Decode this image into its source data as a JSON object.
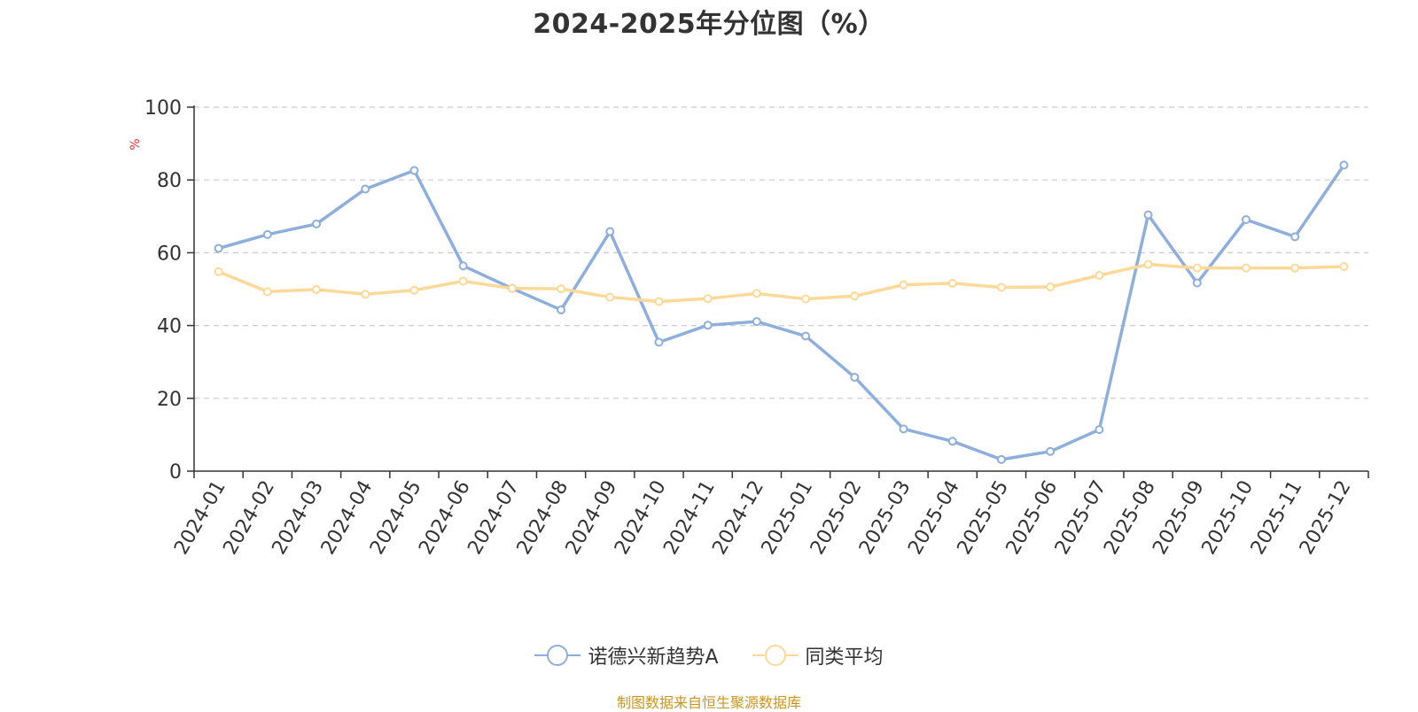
{
  "chart_data": {
    "type": "line",
    "title": "2024-2025年分位图（%）",
    "ylabel": "%",
    "ylim": [
      0,
      100
    ],
    "yticks": [
      0,
      20,
      40,
      60,
      80,
      100
    ],
    "grid": true,
    "legend_position": "bottom-center",
    "categories": [
      "2024-01",
      "2024-02",
      "2024-03",
      "2024-04",
      "2024-05",
      "2024-06",
      "2024-07",
      "2024-08",
      "2024-09",
      "2024-10",
      "2024-11",
      "2024-12",
      "2025-01",
      "2025-02",
      "2025-03",
      "2025-04",
      "2025-05",
      "2025-06",
      "2025-07",
      "2025-08",
      "2025-09",
      "2025-10",
      "2025-11",
      "2025-12"
    ],
    "series": [
      {
        "name": "诺德兴新趋势A",
        "color": "#8eaedb",
        "values": [
          61.2,
          65.0,
          67.9,
          77.5,
          82.6,
          56.4,
          50.2,
          44.3,
          65.8,
          35.4,
          40.1,
          41.1,
          37.1,
          25.8,
          11.6,
          8.2,
          3.2,
          5.4,
          11.4,
          70.4,
          51.7,
          69.1,
          64.4,
          84.1
        ]
      },
      {
        "name": "同类平均",
        "color": "#fdd998",
        "values": [
          54.8,
          49.3,
          49.9,
          48.6,
          49.7,
          52.2,
          50.2,
          50.1,
          47.8,
          46.6,
          47.4,
          48.8,
          47.3,
          48.1,
          51.2,
          51.6,
          50.5,
          50.6,
          53.8,
          56.8,
          55.8,
          55.8,
          55.8,
          56.2
        ]
      }
    ]
  },
  "source_text": "制图数据来自恒生聚源数据库"
}
